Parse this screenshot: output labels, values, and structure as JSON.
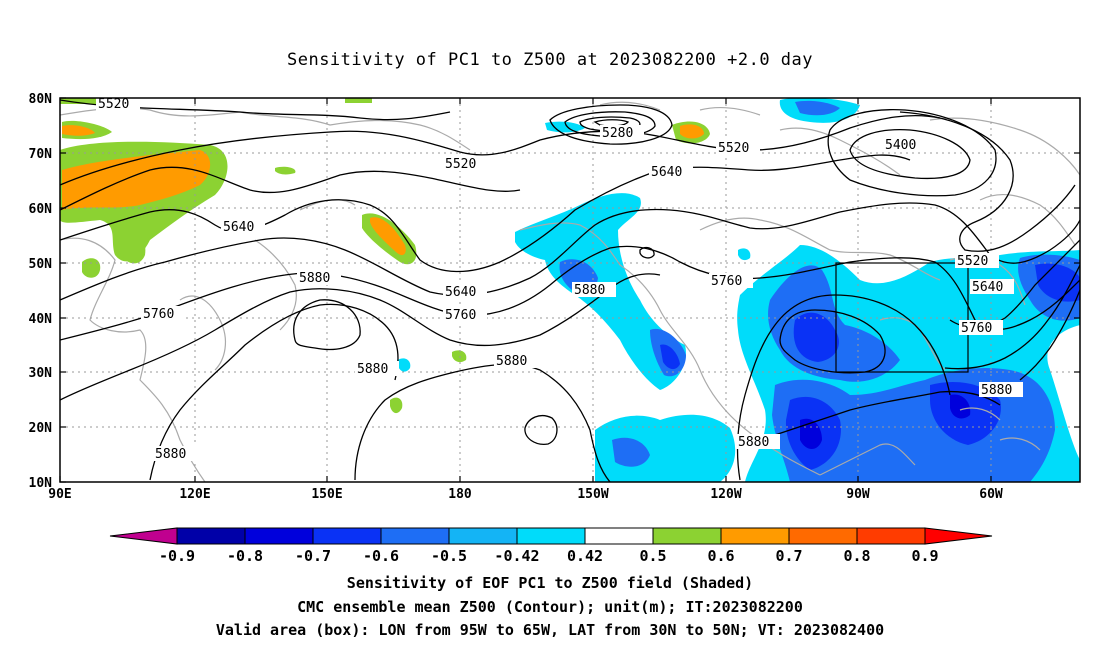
{
  "title": "Sensitivity of PC1 to Z500 at 2023082200 +2.0 day",
  "axes": {
    "lon_labels": [
      "90E",
      "120E",
      "150E",
      "180",
      "150W",
      "120W",
      "90W",
      "60W"
    ],
    "lat_labels": [
      "80N",
      "70N",
      "60N",
      "50N",
      "40N",
      "30N",
      "20N",
      "10N"
    ]
  },
  "colorbar": {
    "labels": [
      "-0.9",
      "-0.8",
      "-0.7",
      "-0.6",
      "-0.5",
      "-0.42",
      "0.42",
      "0.5",
      "0.6",
      "0.7",
      "0.8",
      "0.9"
    ],
    "colors": [
      "#c0008f",
      "#0000a8",
      "#0000dc",
      "#0a32f5",
      "#1e6ef5",
      "#14b4f5",
      "#00dcfa",
      "#ffffff",
      "#8cd232",
      "#ff9b00",
      "#ff6a00",
      "#ff3c00",
      "#ff0000",
      "#ff9bc8"
    ]
  },
  "contour_labels": [
    "5520",
    "5280",
    "5520",
    "5400",
    "5520",
    "5640",
    "5640",
    "5880",
    "5760",
    "5640",
    "5760",
    "5880",
    "5760",
    "5520",
    "5640",
    "5760",
    "5880",
    "5880",
    "5880",
    "5880",
    "5880"
  ],
  "valid_box": {
    "lon_range": [
      "95W",
      "65W"
    ],
    "lat_range": [
      "30N",
      "50N"
    ]
  },
  "captions": [
    "Sensitivity of EOF PC1 to Z500 field (Shaded)",
    "CMC ensemble mean Z500 (Contour); unit(m); IT:2023082200",
    "Valid area (box): LON from 95W to 65W, LAT from 30N to 50N; VT: 2023082400"
  ]
}
